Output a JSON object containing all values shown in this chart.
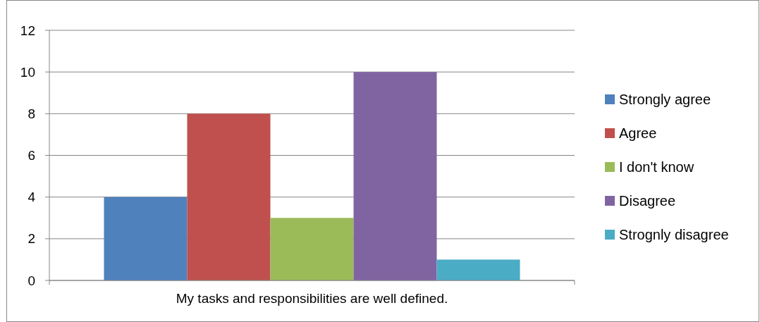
{
  "chart_data": {
    "type": "bar",
    "categories": [
      "My tasks and responsibilities are well defined."
    ],
    "series": [
      {
        "name": "Strongly agree",
        "color": "#4f81bd",
        "values": [
          4
        ]
      },
      {
        "name": "Agree",
        "color": "#c0504d",
        "values": [
          8
        ]
      },
      {
        "name": "I don't know",
        "color": "#9bbb59",
        "values": [
          3
        ]
      },
      {
        "name": "Disagree",
        "color": "#8064a2",
        "values": [
          10
        ]
      },
      {
        "name": "Strognly disagree",
        "color": "#4bacc6",
        "values": [
          1
        ]
      }
    ],
    "ylim": [
      0,
      12
    ],
    "yticks": [
      0,
      2,
      4,
      6,
      8,
      10,
      12
    ],
    "grid": "y",
    "legend": "right"
  }
}
